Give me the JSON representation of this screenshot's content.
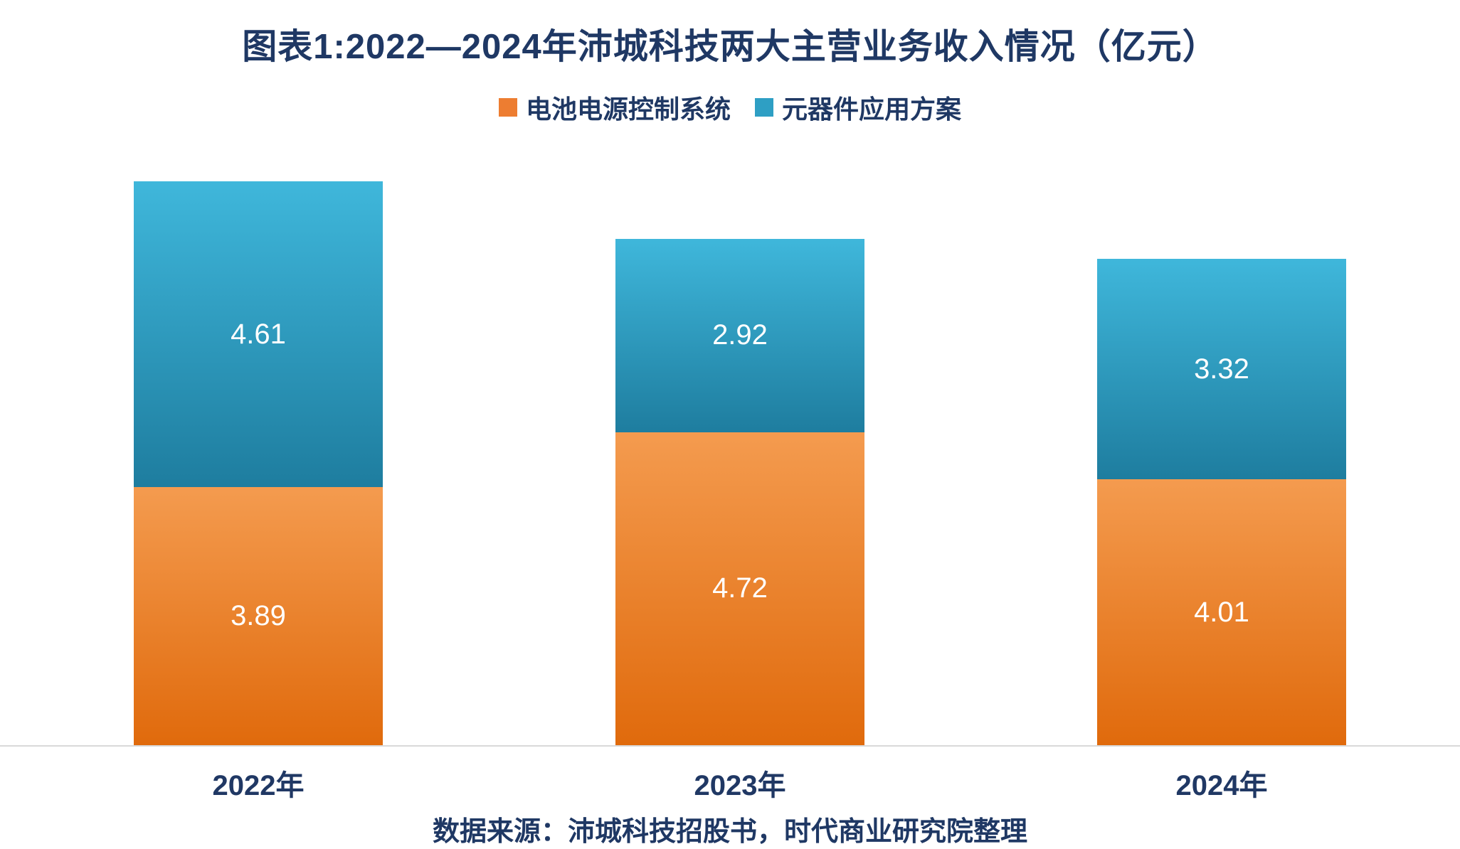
{
  "title": "图表1:2022—2024年沛城科技两大主营业务收入情况（亿元）",
  "legend": [
    {
      "label": "电池电源控制系统",
      "color": "#ED7D31"
    },
    {
      "label": "元器件应用方案",
      "color": "#2E9FC4"
    }
  ],
  "source": "数据来源：沛城科技招股书，时代商业研究院整理",
  "colors": {
    "title": "#1F3864",
    "axis_label": "#203864",
    "baseline": "#D9D9D9",
    "data_label": "#FFFFFF"
  },
  "chart_data": {
    "type": "bar",
    "stacked": true,
    "title": "图表1:2022—2024年沛城科技两大主营业务收入情况（亿元）",
    "categories": [
      "2022年",
      "2023年",
      "2024年"
    ],
    "series": [
      {
        "name": "电池电源控制系统",
        "values": [
          3.89,
          4.72,
          4.01
        ],
        "color_top": "#F49B4F",
        "color_bottom": "#E06A0C"
      },
      {
        "name": "元器件应用方案",
        "values": [
          4.61,
          2.92,
          3.32
        ],
        "color_top": "#3FB7DB",
        "color_bottom": "#1E7D9F"
      }
    ],
    "totals": [
      8.5,
      7.64,
      7.33
    ],
    "ylim": [
      0,
      9.2
    ],
    "ylabel": "",
    "xlabel": "",
    "grid": false,
    "legend_position": "top",
    "data_labels": true,
    "source": "数据来源：沛城科技招股书，时代商业研究院整理"
  }
}
